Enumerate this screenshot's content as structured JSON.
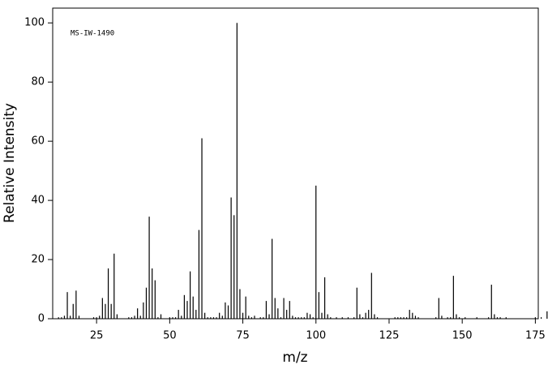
{
  "chart_data": {
    "type": "bar",
    "title": "MS-IW-1490",
    "x_label": "m/z",
    "y_label": "Relative Intensity",
    "x": [
      12,
      13,
      14,
      15,
      16,
      17,
      18,
      19,
      24,
      25,
      26,
      27,
      28,
      29,
      30,
      31,
      32,
      36,
      37,
      38,
      39,
      40,
      41,
      42,
      43,
      44,
      45,
      46,
      47,
      50,
      51,
      52,
      53,
      54,
      55,
      56,
      57,
      58,
      59,
      60,
      61,
      62,
      63,
      64,
      65,
      66,
      67,
      68,
      69,
      70,
      71,
      72,
      73,
      74,
      75,
      76,
      77,
      78,
      79,
      81,
      82,
      83,
      84,
      85,
      86,
      87,
      88,
      89,
      90,
      91,
      92,
      93,
      94,
      95,
      96,
      97,
      98,
      99,
      100,
      101,
      102,
      103,
      104,
      105,
      107,
      109,
      111,
      113,
      114,
      115,
      116,
      117,
      118,
      119,
      120,
      121,
      127,
      128,
      129,
      130,
      131,
      132,
      133,
      134,
      135,
      141,
      142,
      143,
      145,
      146,
      147,
      148,
      149,
      151,
      155,
      159,
      160,
      161,
      162,
      163,
      165,
      175,
      177,
      179,
      180
    ],
    "values": [
      0.5,
      0.5,
      1,
      9,
      1,
      5,
      9.5,
      1,
      0.5,
      0.5,
      1,
      7,
      5,
      17,
      5,
      22,
      1.5,
      0.5,
      0.5,
      1,
      3.5,
      1,
      5.5,
      10.5,
      34.5,
      17,
      13,
      0.5,
      1.5,
      0.5,
      0.5,
      0.5,
      3,
      1,
      8,
      6,
      16,
      7.5,
      3,
      30,
      61,
      2,
      0.5,
      0.5,
      0.5,
      0.5,
      2,
      1,
      5.5,
      4.5,
      41,
      35,
      100,
      10,
      2,
      7.5,
      1,
      0.5,
      1,
      0.5,
      0.5,
      6,
      1.5,
      27,
      7,
      3.5,
      0.5,
      7,
      3,
      6,
      1,
      0.5,
      0.5,
      0.5,
      0.5,
      2,
      1.5,
      0.5,
      45,
      9,
      2,
      14,
      1.5,
      0.5,
      0.5,
      0.5,
      0.5,
      0.5,
      10.5,
      1.5,
      0.5,
      2,
      3,
      15.5,
      1.5,
      0.5,
      0.5,
      0.5,
      0.5,
      0.5,
      0.5,
      3,
      2,
      1,
      0.5,
      0.5,
      7,
      1,
      0.5,
      0.5,
      14.5,
      1.5,
      0.5,
      0.5,
      0.5,
      0.5,
      11.5,
      1.5,
      0.5,
      0.5,
      0.5,
      0.5,
      0.5,
      2.5,
      0.5
    ],
    "color": "#000000",
    "xlim": [
      10,
      176
    ],
    "ylim": [
      0,
      105
    ],
    "xticks": [
      25,
      50,
      75,
      100,
      125,
      150,
      175
    ],
    "yticks": [
      0,
      20,
      40,
      60,
      80,
      100
    ]
  }
}
